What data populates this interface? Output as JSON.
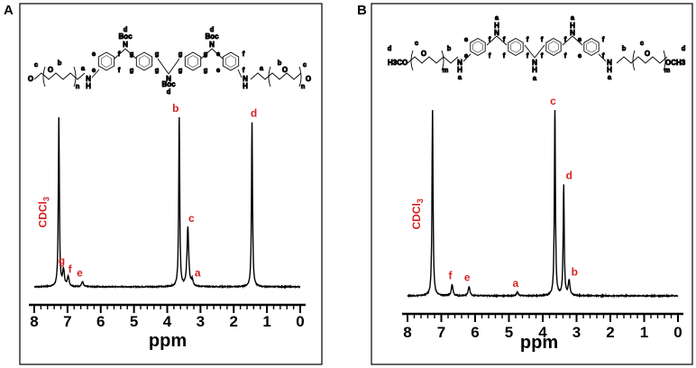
{
  "colors": {
    "label": "#d61f1f",
    "trace": "#000000",
    "frame": "#000000"
  },
  "chart_data": [
    {
      "panel": "A",
      "type": "line",
      "xlabel": "ppm",
      "ylabel": "",
      "xlim": [
        8,
        0
      ],
      "x_ticks": [
        "8",
        "7",
        "6",
        "5",
        "4",
        "3",
        "2",
        "1",
        "0"
      ],
      "peaks": [
        {
          "label": "CDCl3",
          "ppm": 7.26,
          "height": 1.0,
          "is_solvent": true
        },
        {
          "label": "g",
          "ppm": 7.12,
          "height": 0.1
        },
        {
          "label": "f",
          "ppm": 6.98,
          "height": 0.06
        },
        {
          "label": "e",
          "ppm": 6.55,
          "height": 0.03
        },
        {
          "label": "b",
          "ppm": 3.64,
          "height": 1.0
        },
        {
          "label": "c",
          "ppm": 3.38,
          "height": 0.35
        },
        {
          "label": "a",
          "ppm": 3.25,
          "height": 0.04
        },
        {
          "label": "d",
          "ppm": 1.45,
          "height": 0.97
        }
      ],
      "structure": {
        "protecting_group": "Boc",
        "amine": "N",
        "hydrogen": "H",
        "oxygen": "O",
        "repeat": "n",
        "ring_protons": [
          "e",
          "f",
          "g"
        ],
        "boc_proton": "d",
        "chain_protons": [
          "a",
          "b",
          "c"
        ]
      }
    },
    {
      "panel": "B",
      "type": "line",
      "xlabel": "ppm",
      "ylabel": "",
      "xlim": [
        8,
        0
      ],
      "x_ticks": [
        "8",
        "7",
        "6",
        "5",
        "4",
        "3",
        "2",
        "1",
        "0"
      ],
      "peaks": [
        {
          "label": "CDCl3",
          "ppm": 7.26,
          "height": 1.0,
          "is_solvent": true
        },
        {
          "label": "f",
          "ppm": 6.68,
          "height": 0.06
        },
        {
          "label": "e",
          "ppm": 6.18,
          "height": 0.05
        },
        {
          "label": "a",
          "ppm": 4.75,
          "height": 0.02
        },
        {
          "label": "c",
          "ppm": 3.64,
          "height": 1.0
        },
        {
          "label": "d",
          "ppm": 3.38,
          "height": 0.6
        },
        {
          "label": "b",
          "ppm": 3.22,
          "height": 0.08
        }
      ],
      "structure": {
        "methyl_left": "H3CO",
        "methyl_right": "OCH3",
        "amine": "N",
        "hydrogen": "H",
        "oxygen": "O",
        "repeat": "m",
        "ring_protons": [
          "e",
          "f"
        ],
        "nh_proton": "a",
        "chain_protons": [
          "b",
          "c",
          "d"
        ]
      }
    }
  ]
}
